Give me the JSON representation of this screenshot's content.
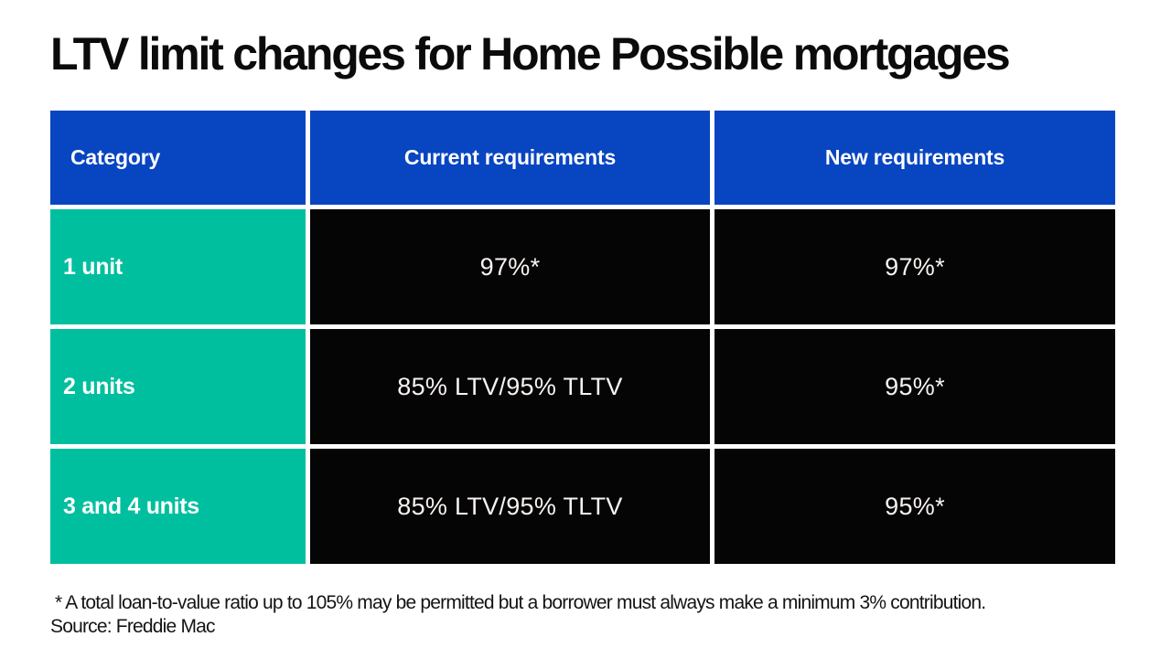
{
  "title": "LTV limit changes for Home Possible mortgages",
  "chart_data": {
    "type": "table",
    "title": "LTV limit changes for Home Possible mortgages",
    "columns": [
      "Category",
      "Current requirements",
      "New requirements"
    ],
    "rows": [
      [
        "1 unit",
        "97%*",
        "97%*"
      ],
      [
        "2 units",
        "85% LTV/95% TLTV",
        "95%*"
      ],
      [
        "3 and 4 units",
        "85% LTV/95% TLTV",
        "95%*"
      ]
    ],
    "footnote": " * A total loan-to-value ratio up to 105% may be permitted but a borrower must always make a minimum 3% contribution.",
    "source": "Source: Freddie Mac",
    "legend": false,
    "layout": {
      "header_align": [
        "left",
        "center",
        "center"
      ],
      "body_align": [
        "left",
        "center",
        "center"
      ]
    }
  },
  "colors": {
    "header_bg": "#0845c1",
    "category_bg": "#00bf9f",
    "value_bg": "#050505",
    "header_text": "#ffffff",
    "value_text": "#f7f3f1",
    "title_text": "#0b0b0b",
    "footnote_text": "#141414",
    "page_bg": "#ffffff"
  }
}
